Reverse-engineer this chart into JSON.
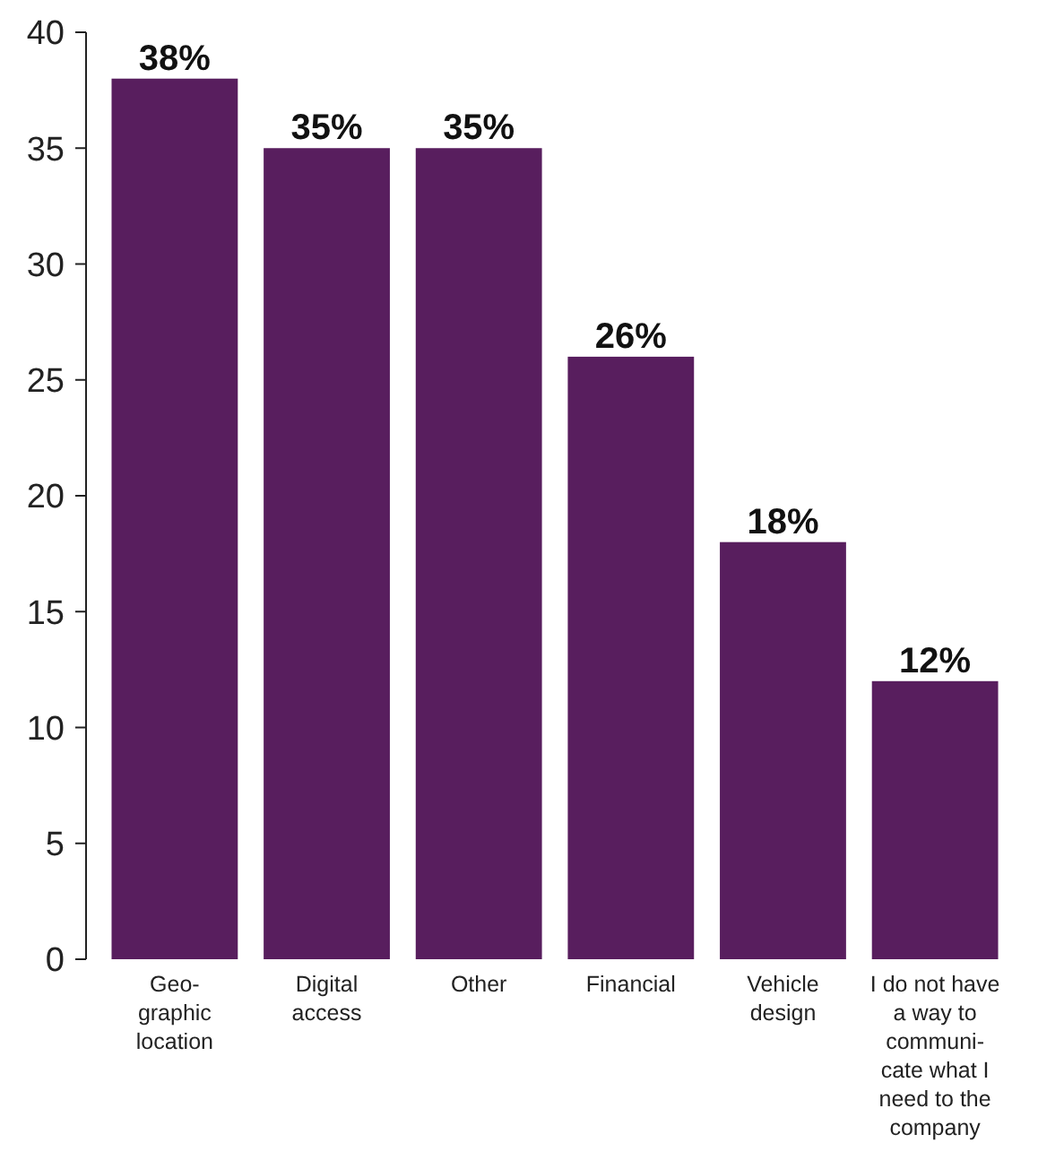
{
  "chart_data": {
    "type": "bar",
    "categories": [
      "Geo-\ngraphic\nlocation",
      "Digital\naccess",
      "Other",
      "Financial",
      "Vehicle\ndesign",
      "I do not have\na way to\ncommuni-\ncate what I\nneed to the\ncompany"
    ],
    "values": [
      38,
      35,
      35,
      26,
      18,
      12
    ],
    "value_labels": [
      "38%",
      "35%",
      "35%",
      "26%",
      "18%",
      "12%"
    ],
    "color": "#581e5e",
    "ylim": [
      0,
      40
    ],
    "yticks": [
      0,
      5,
      10,
      15,
      20,
      25,
      30,
      35,
      40
    ],
    "grid": false
  }
}
